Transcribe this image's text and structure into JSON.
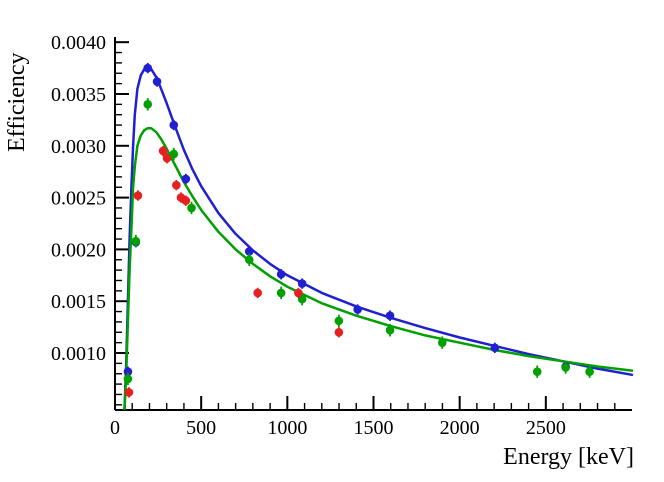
{
  "chart_data": {
    "type": "scatter",
    "title": "",
    "xlabel": "Energy [keV]",
    "ylabel": "Efficiency",
    "xlim": [
      0,
      3000
    ],
    "ylim": [
      0.00045,
      0.00405
    ],
    "grid": false,
    "legend": null,
    "background": "#ffffff",
    "axis_color": "#000000",
    "x_ticks": [
      {
        "v": 0,
        "label": "0"
      },
      {
        "v": 500,
        "label": "500"
      },
      {
        "v": 1000,
        "label": "1000"
      },
      {
        "v": 1500,
        "label": "1500"
      },
      {
        "v": 2000,
        "label": "2000"
      },
      {
        "v": 2500,
        "label": "2500"
      }
    ],
    "x_minor_step": 100,
    "y_ticks": [
      {
        "v": 0.001,
        "label": "0.0010"
      },
      {
        "v": 0.0015,
        "label": "0.0015"
      },
      {
        "v": 0.002,
        "label": "0.0020"
      },
      {
        "v": 0.0025,
        "label": "0.0025"
      },
      {
        "v": 0.003,
        "label": "0.0030"
      },
      {
        "v": 0.0035,
        "label": "0.0035"
      },
      {
        "v": 0.004,
        "label": "0.0040"
      }
    ],
    "y_minor_step": 0.0001,
    "series": [
      {
        "name": "blue-points",
        "color": "#2020d0",
        "marker": "circle",
        "err": 5e-05,
        "points": [
          [
            75,
            0.00082
          ],
          [
            121,
            0.00207
          ],
          [
            190,
            0.00375
          ],
          [
            244,
            0.00362
          ],
          [
            341,
            0.0032
          ],
          [
            411,
            0.00268
          ],
          [
            779,
            0.00198
          ],
          [
            964,
            0.00176
          ],
          [
            1086,
            0.00167
          ],
          [
            1408,
            0.00142
          ],
          [
            1596,
            0.00136
          ],
          [
            2204,
            0.00105
          ],
          [
            2615,
            0.00087
          ]
        ]
      },
      {
        "name": "green-points",
        "color": "#00a000",
        "marker": "circle",
        "err": 6e-05,
        "points": [
          [
            75,
            0.00075
          ],
          [
            121,
            0.00208
          ],
          [
            190,
            0.0034
          ],
          [
            341,
            0.00292
          ],
          [
            444,
            0.0024
          ],
          [
            779,
            0.0019
          ],
          [
            964,
            0.00158
          ],
          [
            1086,
            0.00152
          ],
          [
            1299,
            0.00131
          ],
          [
            1596,
            0.00122
          ],
          [
            1899,
            0.0011
          ],
          [
            2450,
            0.00082
          ],
          [
            2615,
            0.00086
          ],
          [
            2754,
            0.00082
          ]
        ]
      },
      {
        "name": "red-points",
        "color": "#e62020",
        "marker": "circle",
        "err": 5e-05,
        "points": [
          [
            81,
            0.00062
          ],
          [
            133,
            0.00252
          ],
          [
            279,
            0.00295
          ],
          [
            302,
            0.00288
          ],
          [
            356,
            0.00262
          ],
          [
            383,
            0.0025
          ],
          [
            411,
            0.00247
          ],
          [
            828,
            0.00158
          ],
          [
            1064,
            0.00158
          ],
          [
            1299,
            0.0012
          ]
        ]
      }
    ],
    "curves": [
      {
        "name": "fit-curve-blue",
        "color": "#2020d0",
        "points": [
          [
            55,
            0.00046
          ],
          [
            65,
            0.0009
          ],
          [
            75,
            0.0015
          ],
          [
            85,
            0.0021
          ],
          [
            95,
            0.0026
          ],
          [
            105,
            0.003
          ],
          [
            115,
            0.0033
          ],
          [
            130,
            0.00355
          ],
          [
            150,
            0.00368
          ],
          [
            170,
            0.00374
          ],
          [
            190,
            0.00376
          ],
          [
            210,
            0.00374
          ],
          [
            240,
            0.00366
          ],
          [
            270,
            0.00354
          ],
          [
            300,
            0.00341
          ],
          [
            350,
            0.00318
          ],
          [
            400,
            0.00296
          ],
          [
            450,
            0.00277
          ],
          [
            500,
            0.00261
          ],
          [
            600,
            0.00235
          ],
          [
            700,
            0.00215
          ],
          [
            800,
            0.00199
          ],
          [
            900,
            0.00186
          ],
          [
            1000,
            0.00175
          ],
          [
            1200,
            0.00158
          ],
          [
            1400,
            0.00145
          ],
          [
            1600,
            0.00134
          ],
          [
            1800,
            0.00124
          ],
          [
            2000,
            0.00115
          ],
          [
            2200,
            0.00107
          ],
          [
            2400,
            0.00099
          ],
          [
            2600,
            0.00092
          ],
          [
            2800,
            0.00085
          ],
          [
            3000,
            0.00079
          ]
        ]
      },
      {
        "name": "fit-curve-green",
        "color": "#00a000",
        "points": [
          [
            55,
            0.00046
          ],
          [
            65,
            0.0008
          ],
          [
            75,
            0.0013
          ],
          [
            85,
            0.0018
          ],
          [
            95,
            0.0022
          ],
          [
            105,
            0.0026
          ],
          [
            115,
            0.0028
          ],
          [
            130,
            0.003
          ],
          [
            150,
            0.0031
          ],
          [
            170,
            0.00315
          ],
          [
            190,
            0.00317
          ],
          [
            210,
            0.00317
          ],
          [
            240,
            0.00313
          ],
          [
            270,
            0.00306
          ],
          [
            300,
            0.00297
          ],
          [
            350,
            0.00281
          ],
          [
            400,
            0.00265
          ],
          [
            450,
            0.00251
          ],
          [
            500,
            0.00238
          ],
          [
            600,
            0.00217
          ],
          [
            700,
            0.002
          ],
          [
            800,
            0.00186
          ],
          [
            900,
            0.00174
          ],
          [
            1000,
            0.00164
          ],
          [
            1200,
            0.00148
          ],
          [
            1400,
            0.00136
          ],
          [
            1600,
            0.00126
          ],
          [
            1800,
            0.00117
          ],
          [
            2000,
            0.0011
          ],
          [
            2200,
            0.00103
          ],
          [
            2400,
            0.00097
          ],
          [
            2600,
            0.00092
          ],
          [
            2800,
            0.00087
          ],
          [
            3000,
            0.00083
          ]
        ]
      }
    ]
  }
}
